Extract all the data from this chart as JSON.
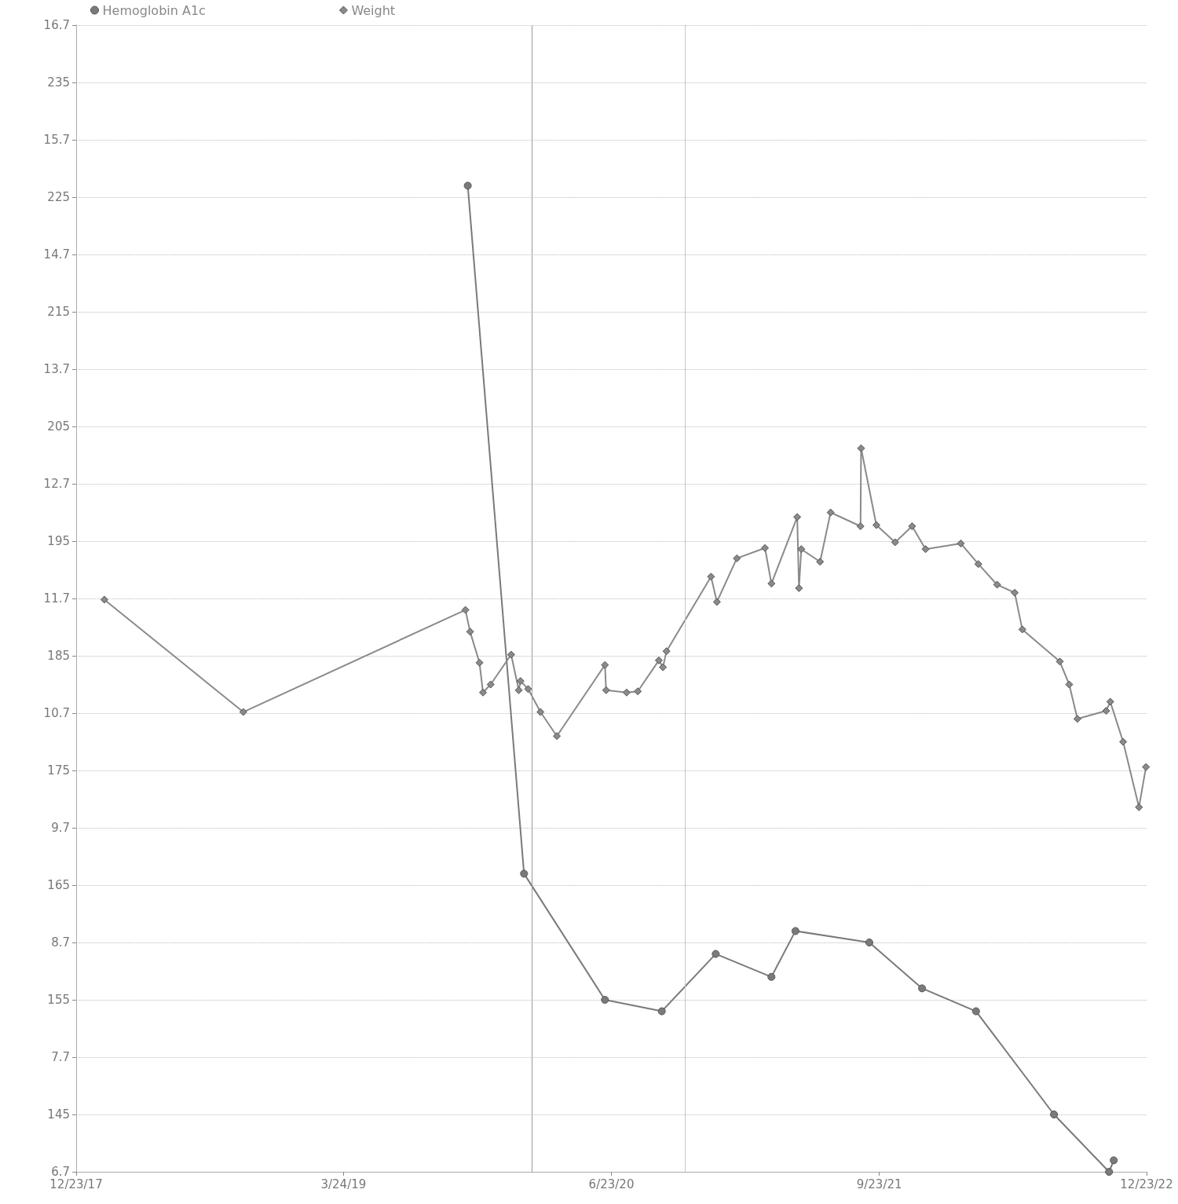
{
  "chart_data": {
    "type": "line",
    "series": [
      {
        "name": "Hemoglobin A1c",
        "color": "#7a7a7a",
        "marker": "circle",
        "x": [
          "2019-10-22",
          "2020-01-26",
          "2020-06-12",
          "2020-09-17",
          "2020-12-18",
          "2021-03-23",
          "2021-05-03",
          "2021-09-06",
          "2021-12-05",
          "2022-03-07",
          "2022-07-18",
          "2022-10-20",
          "2022-10-28"
        ],
        "values": [
          15.3,
          9.3,
          8.2,
          8.1,
          8.6,
          8.4,
          8.8,
          8.7,
          8.3,
          8.1,
          7.2,
          6.7,
          6.8
        ]
      },
      {
        "name": "Weight",
        "color": "#8a8a8a",
        "marker": "diamond",
        "axis": "y2",
        "x": [
          "2018-02-09",
          "2018-10-04",
          "2019-10-18",
          "2019-10-26",
          "2019-11-11",
          "2019-11-17",
          "2019-11-30",
          "2020-01-04",
          "2020-01-17",
          "2020-01-20",
          "2020-02-02",
          "2020-02-23",
          "2020-03-22",
          "2020-06-12",
          "2020-06-14",
          "2020-07-19",
          "2020-08-07",
          "2020-09-12",
          "2020-09-19",
          "2020-09-25",
          "2020-12-10",
          "2020-12-20",
          "2021-01-23",
          "2021-03-12",
          "2021-03-23",
          "2021-05-06",
          "2021-05-09",
          "2021-05-13",
          "2021-06-14",
          "2021-07-02",
          "2021-08-22",
          "2021-08-23",
          "2021-09-18",
          "2021-10-20",
          "2021-11-18",
          "2021-12-11",
          "2022-02-09",
          "2022-03-11",
          "2022-04-12",
          "2022-05-12",
          "2022-05-25",
          "2022-07-28",
          "2022-08-13",
          "2022-08-27",
          "2022-10-15",
          "2022-10-22",
          "2022-11-13",
          "2022-12-10",
          "2022-12-22"
        ],
        "values": [
          189.9,
          180.1,
          189.0,
          187.1,
          184.4,
          181.8,
          182.5,
          185.1,
          182.0,
          182.8,
          182.1,
          180.1,
          178.0,
          184.2,
          182.0,
          181.8,
          181.9,
          184.6,
          184.0,
          185.4,
          191.9,
          189.7,
          193.5,
          194.4,
          191.3,
          197.1,
          190.9,
          194.3,
          193.2,
          197.5,
          196.3,
          203.1,
          196.4,
          194.9,
          196.3,
          194.3,
          194.8,
          193.0,
          191.2,
          190.5,
          187.3,
          184.5,
          182.5,
          179.5,
          180.2,
          181.0,
          177.5,
          171.8,
          175.3
        ]
      }
    ],
    "xlim": [
      "2017-12-23",
      "2022-12-23"
    ],
    "xticks": [
      {
        "value": "2017-12-23",
        "label": "12/23/17"
      },
      {
        "value": "2019-03-24",
        "label": "3/24/19"
      },
      {
        "value": "2020-06-23",
        "label": "6/23/20"
      },
      {
        "value": "2021-09-23",
        "label": "9/23/21"
      },
      {
        "value": "2022-12-23",
        "label": "12/23/22"
      }
    ],
    "ylim": [
      6.7,
      16.7
    ],
    "yticks": [
      6.7,
      7.7,
      8.7,
      9.7,
      10.7,
      11.7,
      12.7,
      13.7,
      14.7,
      15.7,
      16.7
    ],
    "y2lim": [
      140,
      240
    ],
    "y2ticks": [
      145,
      155,
      165,
      175,
      185,
      195,
      205,
      215,
      225,
      235
    ],
    "ref_lines": [
      {
        "axis": "x",
        "value": "2020-02-09",
        "color": "#9a9a9a"
      },
      {
        "axis": "x",
        "value": "2020-10-26",
        "color": "#c8c8c8"
      }
    ],
    "grid": "y",
    "legend": "top left",
    "line_style": "solid"
  }
}
